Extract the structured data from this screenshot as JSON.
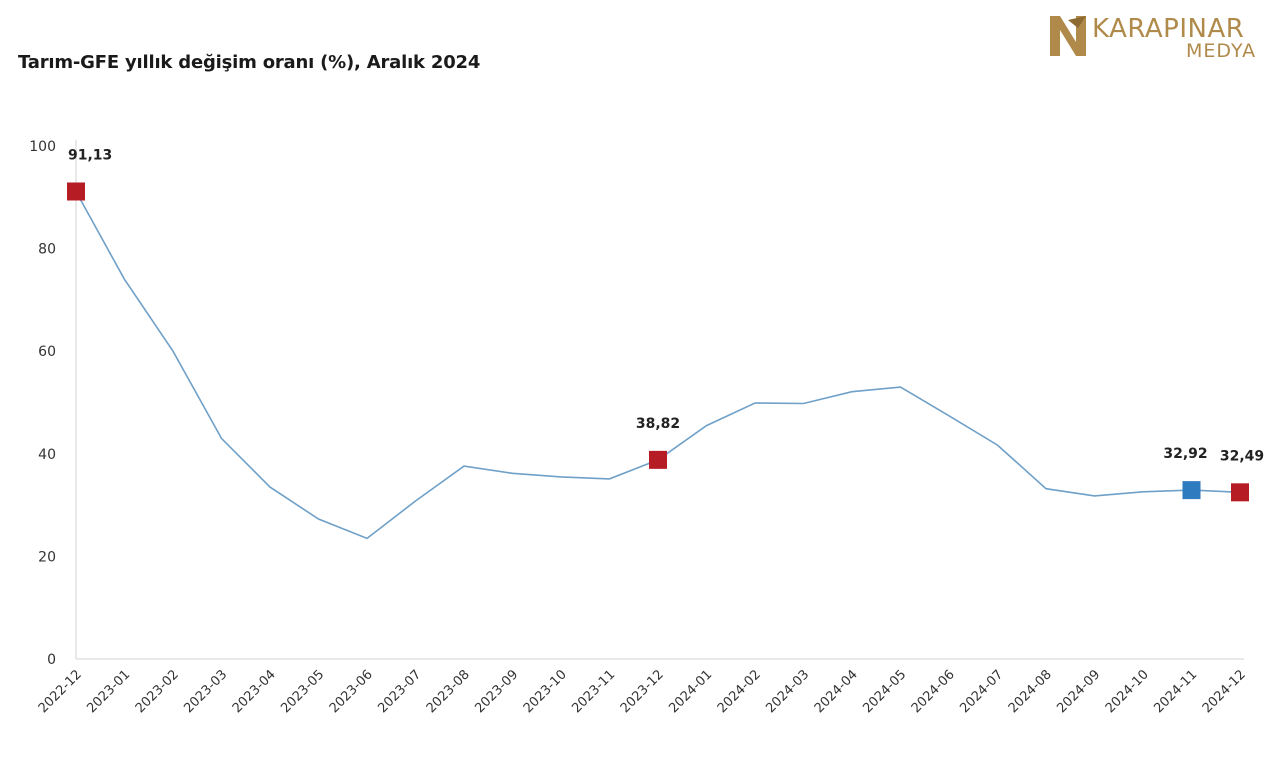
{
  "logo": {
    "brand": "KARAPINAR",
    "sub": "MEDYA",
    "color": "#b08a4a"
  },
  "chart_data": {
    "type": "line",
    "title": "Tarım-GFE yıllık değişim oranı (%), Aralık 2024",
    "xlabel": "",
    "ylabel": "",
    "ylim": [
      0,
      100
    ],
    "yticks": [
      0,
      20,
      40,
      60,
      80,
      100
    ],
    "grid": false,
    "categories": [
      "2022-12",
      "2023-01",
      "2023-02",
      "2023-03",
      "2023-04",
      "2023-05",
      "2023-06",
      "2023-07",
      "2023-08",
      "2023-09",
      "2023-10",
      "2023-11",
      "2023-12",
      "2024-01",
      "2024-02",
      "2024-03",
      "2024-04",
      "2024-05",
      "2024-06",
      "2024-07",
      "2024-08",
      "2024-09",
      "2024-10",
      "2024-11",
      "2024-12"
    ],
    "series": [
      {
        "values": [
          91.13,
          74.0,
          60.0,
          43.0,
          33.5,
          27.3,
          23.5,
          30.8,
          37.6,
          36.2,
          35.5,
          35.1,
          38.82,
          45.5,
          49.9,
          49.8,
          52.1,
          53.0,
          47.4,
          41.7,
          33.2,
          31.8,
          32.6,
          32.92,
          32.49
        ],
        "color": "#6fa0c8"
      }
    ],
    "highlights": [
      {
        "category": "2022-12",
        "value": 91.13,
        "label": "91,13",
        "color": "#b51c23"
      },
      {
        "category": "2023-12",
        "value": 38.82,
        "label": "38,82",
        "color": "#b51c23"
      },
      {
        "category": "2024-11",
        "value": 32.92,
        "label": "32,92",
        "color": "#2e7bbf"
      },
      {
        "category": "2024-12",
        "value": 32.49,
        "label": "32,49",
        "color": "#b51c23"
      }
    ]
  }
}
